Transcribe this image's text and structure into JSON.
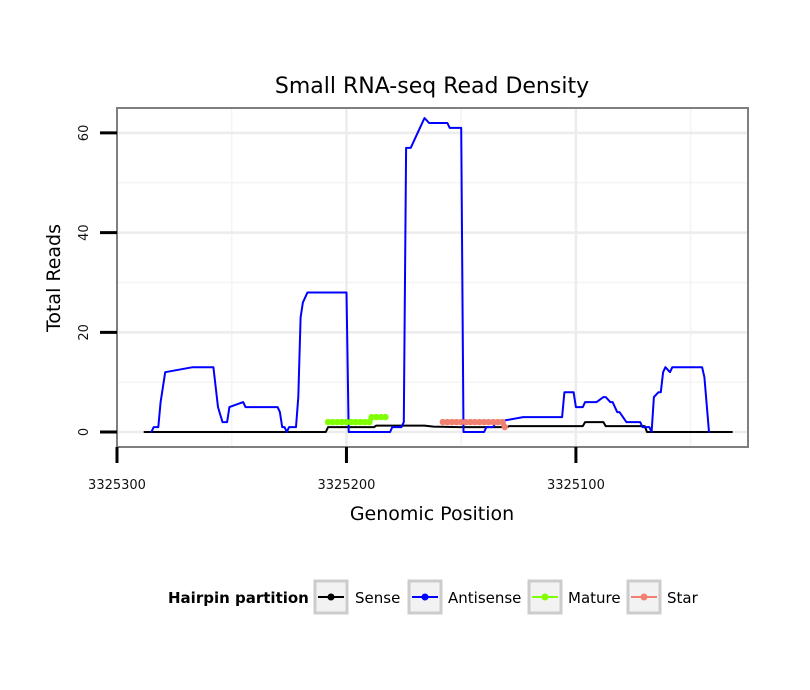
{
  "chart_data": {
    "type": "line",
    "title": "Small RNA-seq Read Density",
    "xlabel": "Genomic Position",
    "ylabel": "Total Reads",
    "xlim": [
      3325300,
      3325025
    ],
    "ylim": [
      -3,
      65
    ],
    "x_reversed": true,
    "x_ticks": [
      3325300,
      3325200,
      3325100
    ],
    "x_tick_labels": [
      "3325300",
      "3325200",
      "3325100"
    ],
    "y_ticks": [
      0,
      20,
      40,
      60
    ],
    "y_tick_labels": [
      "0",
      "20",
      "40",
      "60"
    ],
    "grid": true,
    "legend": {
      "title": "Hairpin partition",
      "position": "bottom",
      "entries": [
        {
          "label": "Sense",
          "color": "#000000"
        },
        {
          "label": "Antisense",
          "color": "#0000ff"
        },
        {
          "label": "Mature",
          "color": "#7fff00"
        },
        {
          "label": "Star",
          "color": "#f08070"
        }
      ]
    },
    "series": [
      {
        "name": "Sense",
        "color": "#000000",
        "width": 2,
        "points": false,
        "x": [
          3325288,
          3325209,
          3325208,
          3325188,
          3325187,
          3325166,
          3325162,
          3325151,
          3325130,
          3325129,
          3325097,
          3325096,
          3325088,
          3325087,
          3325070,
          3325069,
          3325032
        ],
        "y": [
          0,
          0,
          1,
          1,
          1.3,
          1.3,
          1.1,
          1,
          1,
          1.2,
          1.2,
          2,
          2,
          1.2,
          1.2,
          0,
          0
        ]
      },
      {
        "name": "Antisense",
        "color": "#0000ff",
        "width": 2,
        "points": false,
        "x": [
          3325285,
          3325284,
          3325282,
          3325281,
          3325279,
          3325267,
          3325266,
          3325258,
          3325257,
          3325256,
          3325254,
          3325252,
          3325251,
          3325245,
          3325244,
          3325230,
          3325229,
          3325228,
          3325227,
          3325226,
          3325225,
          3325222,
          3325221,
          3325220,
          3325219,
          3325218,
          3325217,
          3325200,
          3325199,
          3325181,
          3325180,
          3325176,
          3325175,
          3325174,
          3325172,
          3325170,
          3325169,
          3325167,
          3325166,
          3325164,
          3325156,
          3325155,
          3325150,
          3325149,
          3325140,
          3325139,
          3325136,
          3325135,
          3325123,
          3325122,
          3325106,
          3325105,
          3325101,
          3325100,
          3325099,
          3325097,
          3325096,
          3325094,
          3325093,
          3325091,
          3325088,
          3325087,
          3325085,
          3325084,
          3325082,
          3325081,
          3325078,
          3325077,
          3325072,
          3325071,
          3325068,
          3325067,
          3325066,
          3325064,
          3325063,
          3325062,
          3325061,
          3325059,
          3325058,
          3325056,
          3325045,
          3325044,
          3325042
        ],
        "y": [
          0,
          1,
          1,
          6,
          12,
          13,
          13,
          13,
          9,
          5,
          2,
          2,
          5,
          6,
          5,
          5,
          4,
          1,
          1,
          0,
          1,
          1,
          7,
          23,
          26,
          27,
          28,
          28,
          0,
          0,
          1,
          1,
          2,
          57,
          57,
          59,
          60,
          62,
          63,
          62,
          62,
          61,
          61,
          0,
          0,
          1,
          1,
          2,
          3,
          3,
          3,
          8,
          8,
          5,
          5,
          5,
          6,
          6,
          6,
          6,
          7,
          7,
          6,
          6,
          4,
          4,
          2,
          2,
          2,
          1,
          1,
          0,
          7,
          8,
          8,
          12,
          13,
          12,
          13,
          13,
          13,
          11,
          0
        ]
      },
      {
        "name": "Mature",
        "color": "#7fff00",
        "width": 5,
        "points": true,
        "x": [
          3325208,
          3325206,
          3325204,
          3325202,
          3325200,
          3325198,
          3325196,
          3325194,
          3325192,
          3325190,
          3325189,
          3325187,
          3325185,
          3325183
        ],
        "y": [
          2,
          2,
          2,
          2,
          2,
          2,
          2,
          2,
          2,
          2,
          3,
          3,
          3,
          3
        ]
      },
      {
        "name": "Star",
        "color": "#f08070",
        "width": 5,
        "points": true,
        "x": [
          3325158,
          3325156,
          3325154,
          3325152,
          3325150,
          3325148,
          3325146,
          3325144,
          3325142,
          3325140,
          3325138,
          3325136,
          3325134,
          3325132,
          3325131
        ],
        "y": [
          2,
          2,
          2,
          2,
          2,
          2,
          2,
          2,
          2,
          2,
          2,
          2,
          2,
          2,
          1
        ]
      }
    ]
  }
}
